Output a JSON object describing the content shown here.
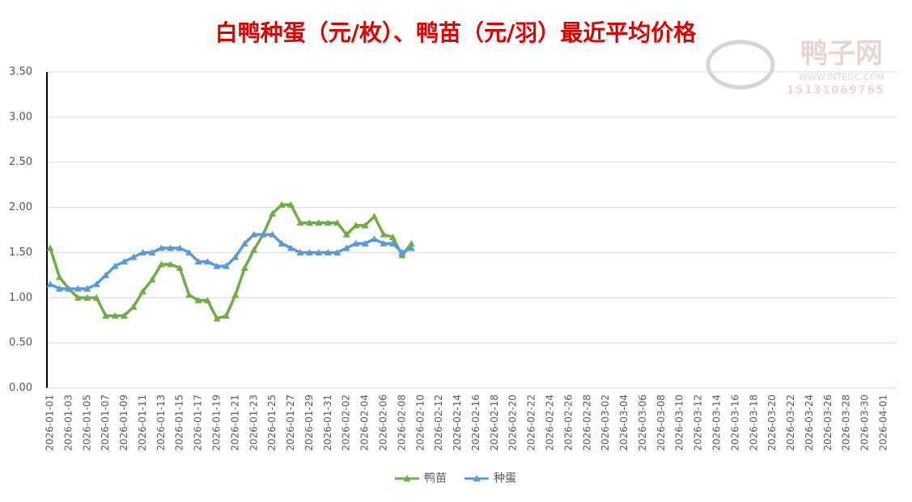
{
  "chart_data": {
    "type": "line",
    "title": "白鸭种蛋（元/枚）、鸭苗（元/羽）最近平均价格",
    "watermark": {
      "name": "鸭子网",
      "site": "WWW.INTEDC.COM",
      "phone": "15131069765"
    },
    "categories": [
      "2026-01-01",
      null,
      "2026-01-03",
      null,
      "2026-01-05",
      null,
      "2026-01-07",
      null,
      "2026-01-09",
      null,
      "2026-01-11",
      null,
      "2026-01-13",
      null,
      "2026-01-15",
      null,
      "2026-01-17",
      null,
      "2026-01-19",
      null,
      "2026-01-21",
      null,
      "2026-01-23",
      null,
      "2026-01-25",
      null,
      "2026-01-27",
      null,
      "2026-01-29",
      null,
      "2026-01-31",
      null,
      "2026-02-02",
      null,
      "2026-02-04",
      null,
      "2026-02-06",
      null,
      "2026-02-08",
      null,
      "2026-02-10",
      null,
      "2026-02-12",
      null,
      "2026-02-14",
      null,
      "2026-02-16",
      null,
      "2026-02-18",
      null,
      "2026-02-20",
      null,
      "2026-02-22",
      null,
      "2026-02-24",
      null,
      "2026-02-26",
      null,
      "2026-02-28",
      null,
      "2026-03-02",
      null,
      "2026-03-04",
      null,
      "2026-03-06",
      null,
      "2026-03-08",
      null,
      "2026-03-10",
      null,
      "2026-03-12",
      null,
      "2026-03-14",
      null,
      "2026-03-16",
      null,
      "2026-03-18",
      null,
      "2026-03-20",
      null,
      "2026-03-22",
      null,
      "2026-03-24",
      null,
      "2026-03-26",
      null,
      "2026-03-28",
      null,
      "2026-03-30",
      null,
      "2026-04-01"
    ],
    "series": [
      {
        "name": "鸭苗",
        "color": "#70ad47",
        "values": [
          1.55,
          1.23,
          1.1,
          1.0,
          1.0,
          1.0,
          0.8,
          0.8,
          0.8,
          0.9,
          1.07,
          1.2,
          1.37,
          1.37,
          1.33,
          1.03,
          0.97,
          0.97,
          0.77,
          0.8,
          1.03,
          1.33,
          1.53,
          1.7,
          1.93,
          2.03,
          2.03,
          1.83,
          1.83,
          1.83,
          1.83,
          1.83,
          1.7,
          1.8,
          1.8,
          1.9,
          1.7,
          1.67,
          1.47,
          1.6,
          null,
          null,
          null,
          null,
          null,
          null,
          null,
          null,
          null,
          null,
          null,
          null,
          null,
          null,
          null,
          null,
          null,
          null,
          null,
          null,
          null,
          null,
          null,
          null,
          null,
          null,
          null,
          null,
          null,
          null,
          null,
          null,
          null,
          null,
          null,
          null,
          null,
          null,
          null,
          null,
          null,
          null,
          null,
          null,
          null,
          null,
          null,
          null,
          null,
          null,
          null
        ]
      },
      {
        "name": "种蛋",
        "color": "#5b9bd5",
        "values": [
          1.15,
          1.1,
          1.1,
          1.1,
          1.1,
          1.15,
          1.25,
          1.35,
          1.4,
          1.45,
          1.5,
          1.5,
          1.55,
          1.55,
          1.55,
          1.5,
          1.4,
          1.4,
          1.35,
          1.35,
          1.45,
          1.6,
          1.7,
          1.7,
          1.7,
          1.6,
          1.55,
          1.5,
          1.5,
          1.5,
          1.5,
          1.5,
          1.55,
          1.6,
          1.6,
          1.65,
          1.6,
          1.6,
          1.5,
          1.55,
          null,
          null,
          null,
          null,
          null,
          null,
          null,
          null,
          null,
          null,
          null,
          null,
          null,
          null,
          null,
          null,
          null,
          null,
          null,
          null,
          null,
          null,
          null,
          null,
          null,
          null,
          null,
          null,
          null,
          null,
          null,
          null,
          null,
          null,
          null,
          null,
          null,
          null,
          null,
          null,
          null,
          null,
          null,
          null,
          null,
          null,
          null,
          null,
          null,
          null,
          null
        ]
      }
    ],
    "ylim": [
      0,
      3.5
    ],
    "yticks": [
      {
        "value": 0,
        "label": "0.00"
      },
      {
        "value": 0.5,
        "label": "0.50"
      },
      {
        "value": 1,
        "label": "1.00"
      },
      {
        "value": 1.5,
        "label": "1.50"
      },
      {
        "value": 2,
        "label": "2.00"
      },
      {
        "value": 2.5,
        "label": "2.50"
      },
      {
        "value": 3,
        "label": "3.00"
      },
      {
        "value": 3.5,
        "label": "3.50"
      }
    ],
    "grid": true,
    "legend": "bottom"
  }
}
